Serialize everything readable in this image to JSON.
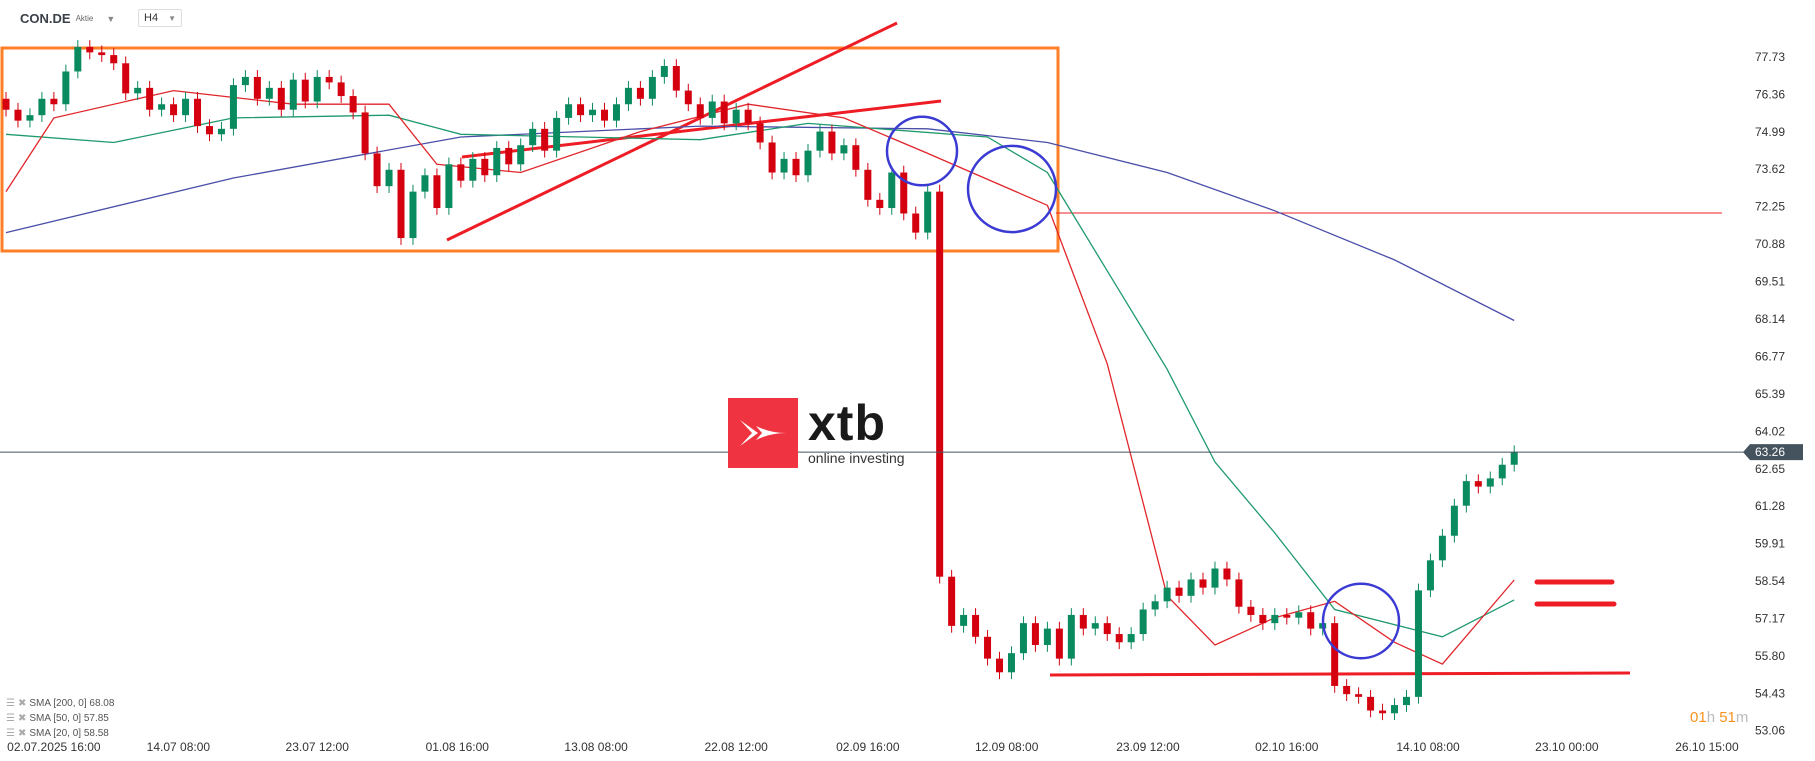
{
  "header": {
    "symbol": "CON.DE",
    "instrument_type": "Aktie",
    "timeframe": "H4"
  },
  "logo": {
    "brand": "xtb",
    "tagline": "online investing"
  },
  "indicators": [
    {
      "label": "SMA [200, 0] 68.08",
      "color": "#4a4ea8"
    },
    {
      "label": "SMA [50, 0] 57.85",
      "color": "#1f9a6c"
    },
    {
      "label": "SMA [20, 0] 58.58",
      "color": "#e0262b"
    }
  ],
  "timer": {
    "hours": "01",
    "h": "h",
    "minutes": "51",
    "m": "m"
  },
  "chart_data": {
    "type": "candlestick",
    "ylim": [
      53.06,
      78.5
    ],
    "y_ticks": [
      "77.73",
      "76.36",
      "74.99",
      "73.62",
      "72.25",
      "70.88",
      "69.51",
      "68.14",
      "66.77",
      "65.39",
      "64.02",
      "62.65",
      "61.28",
      "59.91",
      "58.54",
      "57.17",
      "55.80",
      "54.43",
      "53.06"
    ],
    "last_price": "63.26",
    "x_ticks": [
      {
        "label": "02.07.2025  16:00",
        "index": 4
      },
      {
        "label": "14.07  08:00",
        "index": 14.4
      },
      {
        "label": "23.07  12:00",
        "index": 26
      },
      {
        "label": "01.08  16:00",
        "index": 37.7
      },
      {
        "label": "13.08  08:00",
        "index": 49.3
      },
      {
        "label": "22.08  12:00",
        "index": 61
      },
      {
        "label": "02.09  16:00",
        "index": 72
      },
      {
        "label": "12.09  08:00",
        "index": 83.6
      },
      {
        "label": "23.09  12:00",
        "index": 95.4
      },
      {
        "label": "02.10  16:00",
        "index": 107
      },
      {
        "label": "14.10  08:00",
        "index": 118.8
      },
      {
        "label": "23.10  00:00",
        "index": 130.4
      },
      {
        "label": "26.10  15:00",
        "index": 142.1
      }
    ],
    "closes": [
      75.8,
      75.4,
      75.6,
      76.2,
      76.0,
      77.2,
      78.1,
      77.9,
      77.8,
      77.5,
      76.4,
      76.6,
      75.8,
      76.0,
      75.6,
      76.2,
      75.2,
      74.9,
      75.1,
      76.7,
      77.0,
      76.2,
      76.6,
      75.8,
      76.9,
      76.1,
      77.0,
      76.8,
      76.3,
      75.7,
      74.2,
      73.0,
      73.6,
      71.1,
      72.8,
      73.4,
      72.2,
      73.8,
      73.2,
      74.0,
      73.4,
      74.4,
      73.8,
      74.5,
      75.1,
      74.3,
      75.5,
      76.0,
      75.6,
      75.8,
      75.4,
      76.0,
      76.6,
      76.2,
      77.0,
      77.4,
      76.5,
      76.0,
      75.5,
      76.1,
      75.3,
      75.8,
      75.3,
      74.6,
      73.5,
      74.0,
      73.4,
      74.3,
      75.0,
      74.2,
      74.5,
      73.6,
      72.5,
      72.2,
      73.5,
      72.0,
      71.3,
      72.8,
      58.7,
      56.9,
      57.3,
      56.5,
      55.7,
      55.2,
      55.9,
      57.0,
      56.2,
      56.8,
      55.7,
      57.3,
      56.8,
      57.0,
      56.6,
      56.3,
      56.6,
      57.5,
      57.8,
      58.3,
      58.0,
      58.6,
      58.3,
      59.0,
      58.6,
      57.6,
      57.3,
      57.0,
      57.3,
      57.2,
      57.4,
      56.8,
      57.0,
      54.7,
      54.4,
      54.3,
      53.8,
      53.7,
      54.0,
      54.3,
      58.2,
      59.3,
      60.2,
      61.3,
      62.2,
      62.0,
      62.3,
      62.8,
      63.26
    ],
    "first_open": 76.2,
    "sma": {
      "sma200": [
        [
          0,
          71.3
        ],
        [
          19,
          73.3
        ],
        [
          38,
          74.8
        ],
        [
          58,
          75.2
        ],
        [
          77,
          75.1
        ],
        [
          87,
          74.6
        ],
        [
          97,
          73.5
        ],
        [
          106,
          72.1
        ],
        [
          116,
          70.3
        ],
        [
          126,
          68.08
        ]
      ],
      "sma50": [
        [
          0,
          74.9
        ],
        [
          9,
          74.6
        ],
        [
          19,
          75.5
        ],
        [
          32,
          75.6
        ],
        [
          38,
          74.9
        ],
        [
          58,
          74.7
        ],
        [
          67,
          75.3
        ],
        [
          82,
          74.8
        ],
        [
          87,
          73.5
        ],
        [
          92,
          69.9
        ],
        [
          97,
          66.3
        ],
        [
          101,
          62.9
        ],
        [
          106,
          60.3
        ],
        [
          111,
          57.5
        ],
        [
          120,
          56.5
        ],
        [
          126,
          57.85
        ]
      ],
      "sma20": [
        [
          0,
          72.8
        ],
        [
          4,
          75.5
        ],
        [
          14,
          76.5
        ],
        [
          24,
          76.0
        ],
        [
          32,
          76.0
        ],
        [
          36,
          73.8
        ],
        [
          43,
          73.5
        ],
        [
          53,
          75.0
        ],
        [
          62,
          76.0
        ],
        [
          70,
          75.5
        ],
        [
          77,
          74.2
        ],
        [
          87,
          72.3
        ],
        [
          92,
          66.5
        ],
        [
          97,
          58.0
        ],
        [
          101,
          56.2
        ],
        [
          106,
          57.2
        ],
        [
          111,
          57.8
        ],
        [
          116,
          56.3
        ],
        [
          120,
          55.5
        ],
        [
          126,
          58.58
        ]
      ]
    },
    "colors": {
      "up": "#0a8a5f",
      "down": "#d4000f",
      "drawing": "#ee1c25",
      "box": "#ff7f27",
      "circle": "#3b3bd4",
      "price_line": "#45535e"
    }
  }
}
